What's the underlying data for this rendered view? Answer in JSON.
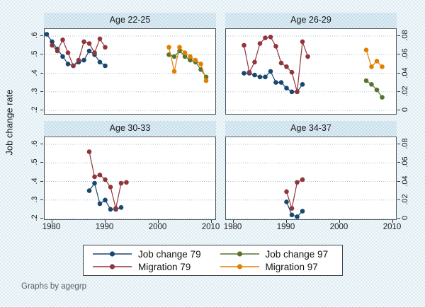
{
  "figure": {
    "caption": "Graphs by agegrp"
  },
  "chart_data": {
    "type": "line",
    "description": "Four-panel Stata-style line chart of job change and migration rates by age group, NLSY79 vs NLSY97 cohorts",
    "grid": true,
    "x_axis": {
      "ticks": [
        1980,
        1990,
        2000,
        2010
      ],
      "range": [
        1977.5,
        2011
      ]
    },
    "left_axis": {
      "label": "Job change rate",
      "ticks": [
        ".2",
        ".3",
        ".4",
        ".5",
        ".6"
      ],
      "range": [
        0.2,
        0.6
      ],
      "applies_to": "Job change series"
    },
    "right_axis": {
      "ticks": [
        "0",
        ".02",
        ".04",
        ".06",
        ".08"
      ],
      "range": [
        0,
        0.08
      ],
      "applies_to": "Migration series"
    },
    "legend": {
      "position": "bottom",
      "items": [
        {
          "label": "Job change 79",
          "color": "#1a476f"
        },
        {
          "label": "Migration 79",
          "color": "#90353b"
        },
        {
          "label": "Job change 97",
          "color": "#55752f"
        },
        {
          "label": "Migration 97",
          "color": "#e37e00"
        }
      ]
    },
    "panels": [
      {
        "title": "Age 22-25",
        "series": [
          {
            "name": "Job change 79",
            "color": "#1a476f",
            "axis": "left",
            "years": [
              1979,
              1980,
              1981,
              1982,
              1983,
              1984,
              1985,
              1986,
              1987,
              1988,
              1989,
              1990
            ],
            "values": [
              0.61,
              0.57,
              0.53,
              0.49,
              0.45,
              0.44,
              0.46,
              0.47,
              0.52,
              0.5,
              0.46,
              0.44
            ]
          },
          {
            "name": "Migration 79",
            "color": "#90353b",
            "axis": "right",
            "years": [
              1980,
              1981,
              1982,
              1983,
              1984,
              1985,
              1986,
              1987,
              1988,
              1989,
              1990
            ],
            "values": [
              0.07,
              0.064,
              0.076,
              0.062,
              0.048,
              0.054,
              0.074,
              0.072,
              0.062,
              0.077,
              0.068
            ]
          },
          {
            "name": "Job change 97",
            "color": "#55752f",
            "axis": "left",
            "years": [
              2002,
              2003,
              2004,
              2005,
              2006,
              2007,
              2008,
              2009
            ],
            "values": [
              0.5,
              0.49,
              0.52,
              0.49,
              0.47,
              0.46,
              0.42,
              0.38
            ]
          },
          {
            "name": "Migration 97",
            "color": "#e37e00",
            "axis": "right",
            "years": [
              2002,
              2003,
              2004,
              2005,
              2006,
              2007,
              2008,
              2009
            ],
            "values": [
              0.068,
              0.042,
              0.068,
              0.062,
              0.058,
              0.054,
              0.05,
              0.032
            ]
          }
        ]
      },
      {
        "title": "Age 26-29",
        "series": [
          {
            "name": "Job change 79",
            "color": "#1a476f",
            "axis": "left",
            "years": [
              1982,
              1983,
              1984,
              1985,
              1986,
              1987,
              1988,
              1989,
              1990,
              1991,
              1992,
              1993
            ],
            "values": [
              0.4,
              0.4,
              0.39,
              0.38,
              0.38,
              0.41,
              0.35,
              0.35,
              0.32,
              0.3,
              0.3,
              0.34
            ]
          },
          {
            "name": "Migration 79",
            "color": "#90353b",
            "axis": "right",
            "years": [
              1982,
              1983,
              1984,
              1985,
              1986,
              1987,
              1988,
              1989,
              1990,
              1991,
              1992,
              1993,
              1994
            ],
            "values": [
              0.07,
              0.041,
              0.052,
              0.072,
              0.078,
              0.079,
              0.069,
              0.051,
              0.047,
              0.041,
              0.02,
              0.074,
              0.058
            ]
          },
          {
            "name": "Job change 97",
            "color": "#55752f",
            "axis": "left",
            "years": [
              2005,
              2006,
              2007,
              2008
            ],
            "values": [
              0.36,
              0.34,
              0.31,
              0.27
            ]
          },
          {
            "name": "Migration 97",
            "color": "#e37e00",
            "axis": "right",
            "years": [
              2005,
              2006,
              2007,
              2008
            ],
            "values": [
              0.065,
              0.047,
              0.053,
              0.047
            ]
          }
        ]
      },
      {
        "title": "Age 30-33",
        "series": [
          {
            "name": "Job change 79",
            "color": "#1a476f",
            "axis": "left",
            "years": [
              1987,
              1988,
              1989,
              1990,
              1991,
              1992,
              1993
            ],
            "values": [
              0.35,
              0.39,
              0.28,
              0.3,
              0.25,
              0.25,
              0.26
            ]
          },
          {
            "name": "Migration 79",
            "color": "#90353b",
            "axis": "right",
            "years": [
              1987,
              1988,
              1989,
              1990,
              1991,
              1992,
              1993,
              1994
            ],
            "values": [
              0.072,
              0.045,
              0.047,
              0.042,
              0.034,
              0.011,
              0.038,
              0.039
            ]
          }
        ]
      },
      {
        "title": "Age 34-37",
        "series": [
          {
            "name": "Job change 79",
            "color": "#1a476f",
            "axis": "left",
            "years": [
              1990,
              1991,
              1992,
              1993
            ],
            "values": [
              0.29,
              0.22,
              0.21,
              0.24
            ]
          },
          {
            "name": "Migration 79",
            "color": "#90353b",
            "axis": "right",
            "years": [
              1990,
              1991,
              1992,
              1993
            ],
            "values": [
              0.029,
              0.011,
              0.039,
              0.042
            ]
          }
        ]
      }
    ]
  }
}
